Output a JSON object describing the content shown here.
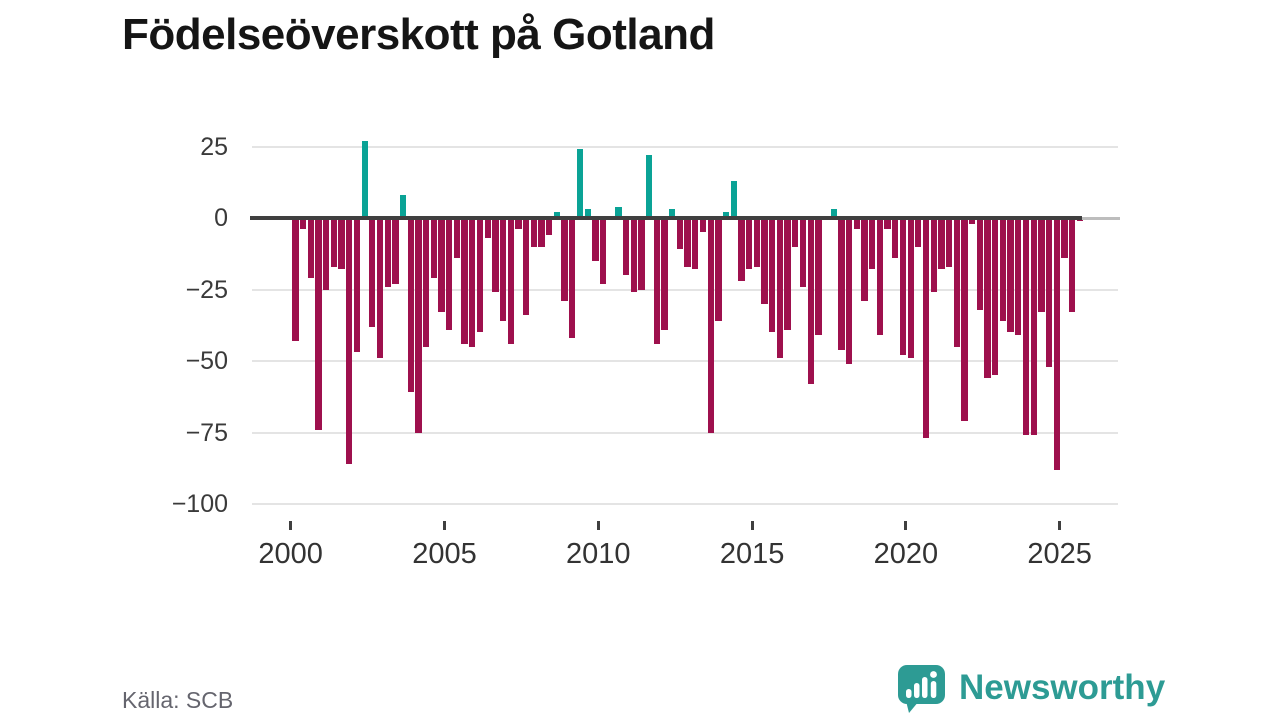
{
  "title": "Födelseöverskott på Gotland",
  "source": "Källa: SCB",
  "branding": {
    "logo_text": "Newsworthy",
    "logo_color": "#2d9b94",
    "logo_icon": "speech-bubble-bar-chart-icon"
  },
  "chart_data": {
    "type": "bar",
    "title": "Födelseöverskott på Gotland",
    "xlabel": "",
    "ylabel": "",
    "grid": "horizontal",
    "legend": "none",
    "ylim": [
      -105,
      31
    ],
    "y_ticks": [
      25,
      0,
      -25,
      -50,
      -75,
      -100
    ],
    "y_tick_labels": [
      "25",
      "0",
      "−25",
      "−50",
      "−75",
      "−100"
    ],
    "x_tick_years": [
      2000,
      2005,
      2010,
      2015,
      2020,
      2025
    ],
    "x_tick_labels": [
      "2000",
      "2005",
      "2010",
      "2015",
      "2020",
      "2025"
    ],
    "negative_color": "#9e104d",
    "positive_color": "#0aa396",
    "axis_line_color": "#3f3f3f",
    "gridline_color": "#e4e4e4",
    "categories": [
      "2000Q1",
      "2000Q2",
      "2000Q3",
      "2000Q4",
      "2001Q1",
      "2001Q2",
      "2001Q3",
      "2001Q4",
      "2002Q1",
      "2002Q2",
      "2002Q3",
      "2002Q4",
      "2003Q1",
      "2003Q2",
      "2003Q3",
      "2003Q4",
      "2004Q1",
      "2004Q2",
      "2004Q3",
      "2004Q4",
      "2005Q1",
      "2005Q2",
      "2005Q3",
      "2005Q4",
      "2006Q1",
      "2006Q2",
      "2006Q3",
      "2006Q4",
      "2007Q1",
      "2007Q2",
      "2007Q3",
      "2007Q4",
      "2008Q1",
      "2008Q2",
      "2008Q3",
      "2008Q4",
      "2009Q1",
      "2009Q2",
      "2009Q3",
      "2009Q4",
      "2010Q1",
      "2010Q2",
      "2010Q3",
      "2010Q4",
      "2011Q1",
      "2011Q2",
      "2011Q3",
      "2011Q4",
      "2012Q1",
      "2012Q2",
      "2012Q3",
      "2012Q4",
      "2013Q1",
      "2013Q2",
      "2013Q3",
      "2013Q4",
      "2014Q1",
      "2014Q2",
      "2014Q3",
      "2014Q4",
      "2015Q1",
      "2015Q2",
      "2015Q3",
      "2015Q4",
      "2016Q1",
      "2016Q2",
      "2016Q3",
      "2016Q4",
      "2017Q1",
      "2017Q2",
      "2017Q3",
      "2017Q4",
      "2018Q1",
      "2018Q2",
      "2018Q3",
      "2018Q4",
      "2019Q1",
      "2019Q2",
      "2019Q3",
      "2019Q4",
      "2020Q1",
      "2020Q2",
      "2020Q3",
      "2020Q4",
      "2021Q1",
      "2021Q2",
      "2021Q3",
      "2021Q4",
      "2022Q1",
      "2022Q2",
      "2022Q3",
      "2022Q4",
      "2023Q1",
      "2023Q2",
      "2023Q3",
      "2023Q4",
      "2024Q1",
      "2024Q2",
      "2024Q3",
      "2024Q4",
      "2025Q1",
      "2025Q2",
      "2025Q3"
    ],
    "values": [
      -43,
      -4,
      -21,
      -74,
      -25,
      -17,
      -18,
      -86,
      -47,
      27,
      -38,
      -49,
      -24,
      -23,
      8,
      -61,
      -75,
      -45,
      -21,
      -33,
      -39,
      -14,
      -44,
      -45,
      -40,
      -7,
      -26,
      -36,
      -44,
      -4,
      -34,
      -10,
      -10,
      -6,
      2,
      -29,
      -42,
      24,
      3,
      -15,
      -23,
      0,
      4,
      -20,
      -26,
      -25,
      22,
      -44,
      -39,
      3,
      -11,
      -17,
      -18,
      -5,
      -75,
      -36,
      2,
      13,
      -22,
      -18,
      -17,
      -30,
      -40,
      -49,
      -39,
      -10,
      -24,
      -58,
      -41,
      0,
      3,
      -46,
      -51,
      -4,
      -29,
      -18,
      -41,
      -4,
      -14,
      -48,
      -49,
      -10,
      -77,
      -26,
      -18,
      -17,
      -45,
      -71,
      -2,
      -32,
      -56,
      -55,
      -36,
      -40,
      -41,
      -76,
      -76,
      -33,
      -52,
      -88,
      -14,
      -33,
      -1
    ]
  }
}
